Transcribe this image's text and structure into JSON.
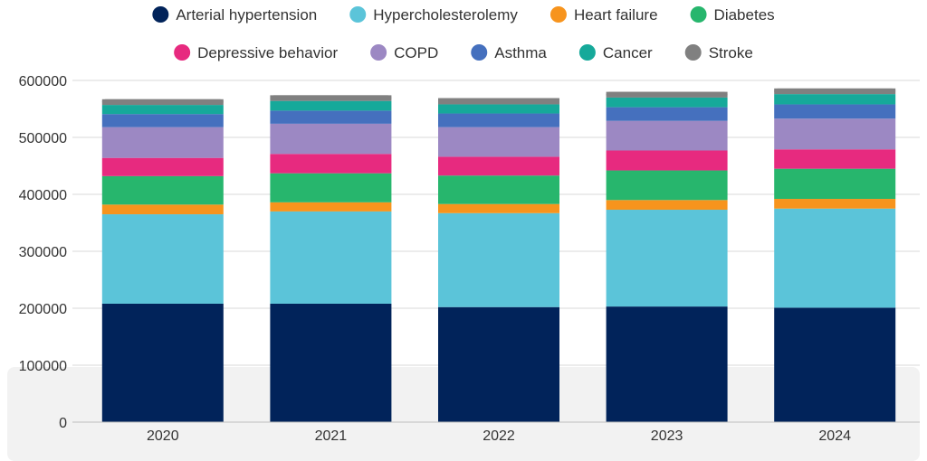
{
  "chart_data": {
    "type": "bar",
    "stacked": true,
    "title": "",
    "xlabel": "",
    "ylabel": "",
    "ylim": [
      0,
      600000
    ],
    "yticks": [
      0,
      100000,
      200000,
      300000,
      400000,
      500000,
      600000
    ],
    "grid": true,
    "legend_position": "top",
    "categories": [
      "2020",
      "2021",
      "2022",
      "2023",
      "2024"
    ],
    "series": [
      {
        "name": "Arterial hypertension",
        "color": "#01235A",
        "values": [
          208000,
          208000,
          202000,
          203000,
          201000
        ]
      },
      {
        "name": "Hypercholesterolemy",
        "color": "#5BC4D9",
        "values": [
          157000,
          162000,
          165000,
          170000,
          174000
        ]
      },
      {
        "name": "Heart failure",
        "color": "#F7941D",
        "values": [
          17000,
          16000,
          16000,
          17000,
          17000
        ]
      },
      {
        "name": "Diabetes",
        "color": "#27B66D",
        "values": [
          50000,
          51000,
          50000,
          52000,
          53000
        ]
      },
      {
        "name": "Depressive behavior",
        "color": "#E72A7F",
        "values": [
          32000,
          34000,
          33000,
          35000,
          34000
        ]
      },
      {
        "name": "COPD",
        "color": "#9C88C3",
        "values": [
          54000,
          53000,
          52000,
          52000,
          54000
        ]
      },
      {
        "name": "Asthma",
        "color": "#4570BE",
        "values": [
          23000,
          23000,
          24000,
          24000,
          25000
        ]
      },
      {
        "name": "Cancer",
        "color": "#16A99A",
        "values": [
          16000,
          17000,
          16000,
          17000,
          18000
        ]
      },
      {
        "name": "Stroke",
        "color": "#808080",
        "values": [
          10000,
          10000,
          11000,
          10000,
          10000
        ]
      }
    ]
  }
}
